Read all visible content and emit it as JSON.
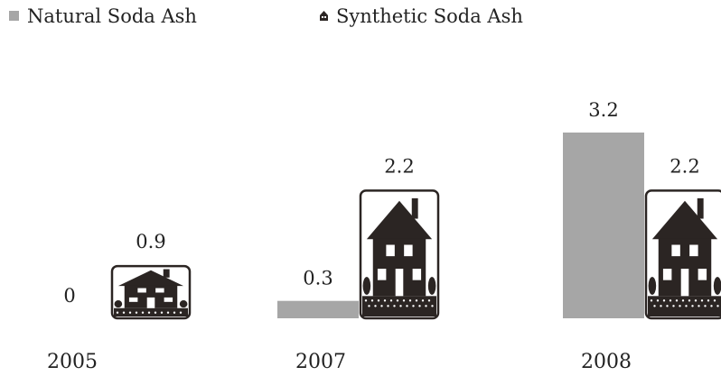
{
  "chart_data": {
    "type": "bar",
    "categories": [
      "2005",
      "2007",
      "2008"
    ],
    "series": [
      {
        "name": "Natural Soda Ash",
        "values": [
          0,
          0.3,
          3.2
        ],
        "color": "#a6a6a6",
        "style": "solid-bar"
      },
      {
        "name": "Synthetic Soda Ash",
        "values": [
          0.9,
          2.2,
          2.2
        ],
        "color": "#2b2523",
        "style": "house-pictogram"
      }
    ],
    "data_labels": {
      "natural": [
        "0",
        "0.3",
        "3.2"
      ],
      "synthetic": [
        "0.9",
        "2.2",
        "2.2"
      ]
    },
    "title": "",
    "xlabel": "",
    "ylabel": "",
    "ylim": [
      0,
      3.2
    ],
    "legend": "top-left",
    "grid": false
  }
}
